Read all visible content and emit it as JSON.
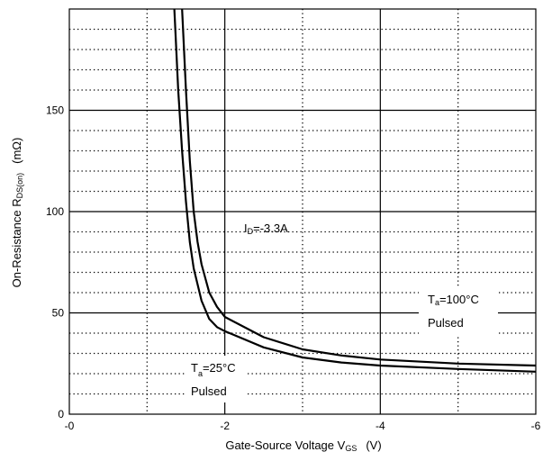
{
  "chart_data": {
    "type": "line",
    "title": "",
    "xlabel": {
      "main": "Gate-Source Voltage  V",
      "sub": "GS",
      "unit": "(V)"
    },
    "ylabel": {
      "main": "On-Resistance  R",
      "sub": "DS(on)",
      "unit": "(mΩ)"
    },
    "xlim": [
      0,
      -6
    ],
    "ylim": [
      0,
      200
    ],
    "x_ticks": [
      0,
      -2,
      -4,
      -6
    ],
    "x_tick_labels": [
      "-0",
      "-2",
      "-4",
      "-6"
    ],
    "y_ticks": [
      0,
      50,
      100,
      150
    ],
    "y_tick_labels": [
      "0",
      "50",
      "100",
      "150"
    ],
    "grid": {
      "major_solid": true,
      "minor_dotted_x": [
        -1,
        -3,
        -5
      ],
      "minor_dotted_y": [
        10,
        20,
        30,
        40,
        60,
        70,
        80,
        90,
        110,
        120,
        130,
        140,
        160,
        170,
        180,
        190
      ]
    },
    "series": [
      {
        "points": [
          [
            -1.35,
            200
          ],
          [
            -1.4,
            160
          ],
          [
            -1.45,
            130
          ],
          [
            -1.5,
            105
          ],
          [
            -1.55,
            85
          ],
          [
            -1.6,
            72
          ],
          [
            -1.7,
            56
          ],
          [
            -1.8,
            47
          ],
          [
            -1.9,
            43
          ],
          [
            -2.0,
            41
          ],
          [
            -2.5,
            33
          ],
          [
            -3.0,
            28
          ],
          [
            -3.5,
            25.5
          ],
          [
            -4.0,
            24
          ],
          [
            -5.0,
            22.3
          ],
          [
            -6.0,
            21
          ]
        ]
      },
      {
        "points": [
          [
            -1.45,
            200
          ],
          [
            -1.5,
            160
          ],
          [
            -1.55,
            125
          ],
          [
            -1.6,
            100
          ],
          [
            -1.65,
            85
          ],
          [
            -1.7,
            74
          ],
          [
            -1.8,
            60
          ],
          [
            -1.9,
            53
          ],
          [
            -2.0,
            48
          ],
          [
            -2.5,
            38
          ],
          [
            -3.0,
            32
          ],
          [
            -3.5,
            29
          ],
          [
            -4.0,
            27
          ],
          [
            -5.0,
            25
          ],
          [
            -6.0,
            24
          ]
        ]
      }
    ],
    "annotations": [
      {
        "main": "I",
        "sub": "D",
        "rest": "=-3.3A"
      },
      {
        "main": "T",
        "sub": "a",
        "rest": "=25°C",
        "line2": "Pulsed"
      },
      {
        "main": "T",
        "sub": "a",
        "rest": "=100°C",
        "line2": "Pulsed"
      }
    ]
  }
}
